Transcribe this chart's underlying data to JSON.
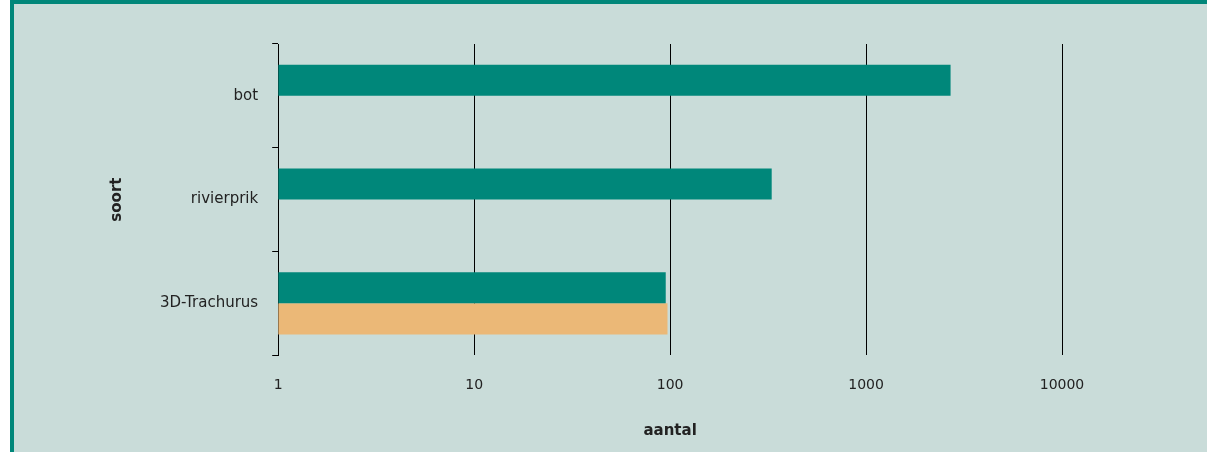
{
  "chart_data": {
    "type": "bar",
    "orientation": "horizontal",
    "xlabel": "aantal",
    "ylabel": "soort",
    "categories": [
      "bot",
      "rivierprik",
      "3D-Trachurus"
    ],
    "series": [
      {
        "color": "#00877a",
        "values": [
          2700,
          330,
          95
        ]
      },
      {
        "color": "#ebb877",
        "values": [
          null,
          null,
          97
        ]
      }
    ],
    "log": "x",
    "xlim": [
      1,
      10000
    ],
    "xticks": [
      1,
      10,
      100,
      1000,
      10000
    ],
    "grid": "x",
    "legend": false
  }
}
